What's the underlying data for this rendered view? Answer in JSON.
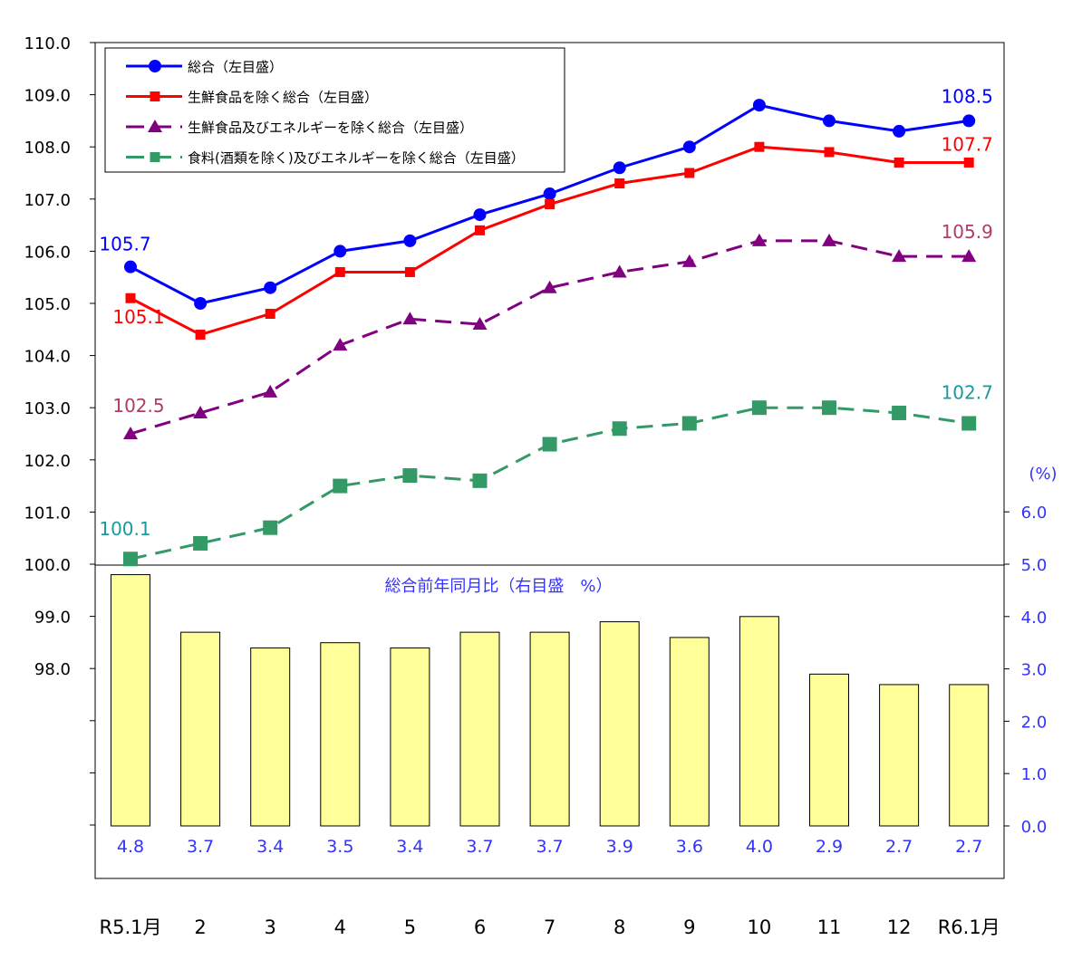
{
  "chart_data": [
    {
      "type": "line",
      "axis": "left",
      "categories": [
        "R5.1月",
        "2",
        "3",
        "4",
        "5",
        "6",
        "7",
        "8",
        "9",
        "10",
        "11",
        "12",
        "R6.1月"
      ],
      "ylim": [
        98.0,
        110.0
      ],
      "yticks": [
        "110.0",
        "109.0",
        "108.0",
        "107.0",
        "106.0",
        "105.0",
        "104.0",
        "103.0",
        "102.0",
        "101.0",
        "100.0",
        "99.0",
        "98.0"
      ],
      "legend_position": "top-left",
      "series": [
        {
          "name": "総合（左目盛）",
          "color": "#0000ff",
          "marker": "circle",
          "dash": false,
          "values": [
            105.7,
            105.0,
            105.3,
            106.0,
            106.2,
            106.7,
            107.1,
            107.6,
            108.0,
            108.8,
            108.5,
            108.3,
            108.5
          ],
          "labels": {
            "first": "105.7",
            "last": "108.5"
          }
        },
        {
          "name": "生鮮食品を除く総合（左目盛）",
          "color": "#ff0000",
          "marker": "square",
          "dash": false,
          "values": [
            105.1,
            104.4,
            104.8,
            105.6,
            105.6,
            106.4,
            106.9,
            107.3,
            107.5,
            108.0,
            107.9,
            107.7,
            107.7
          ],
          "labels": {
            "first": "105.1",
            "last": "107.7"
          }
        },
        {
          "name": "生鮮食品及びエネルギーを除く総合（左目盛）",
          "color": "#800080",
          "label_color": "#b03a6a",
          "marker": "triangle",
          "dash": true,
          "values": [
            102.5,
            102.9,
            103.3,
            104.2,
            104.7,
            104.6,
            105.3,
            105.6,
            105.8,
            106.2,
            106.2,
            105.9,
            105.9
          ],
          "labels": {
            "first": "102.5",
            "last": "105.9"
          }
        },
        {
          "name": "食料(酒類を除く)及びエネルギーを除く総合（左目盛）",
          "color": "#339966",
          "label_color": "#1a9a9a",
          "marker": "square-large",
          "dash": true,
          "values": [
            100.1,
            100.4,
            100.7,
            101.5,
            101.7,
            101.6,
            102.3,
            102.6,
            102.7,
            103.0,
            103.0,
            102.9,
            102.7
          ],
          "labels": {
            "first": "100.1",
            "last": "102.7"
          }
        }
      ]
    },
    {
      "type": "bar",
      "axis": "right",
      "title": "総合前年同月比（右目盛　%）",
      "unit_label": "(%)",
      "categories": [
        "R5.1月",
        "2",
        "3",
        "4",
        "5",
        "6",
        "7",
        "8",
        "9",
        "10",
        "11",
        "12",
        "R6.1月"
      ],
      "values": [
        4.8,
        3.7,
        3.4,
        3.5,
        3.4,
        3.7,
        3.7,
        3.9,
        3.6,
        4.0,
        2.9,
        2.7,
        2.7
      ],
      "value_labels": [
        "4.8",
        "3.7",
        "3.4",
        "3.5",
        "3.4",
        "3.7",
        "3.7",
        "3.9",
        "3.6",
        "4.0",
        "2.9",
        "2.7",
        "2.7"
      ],
      "ylim": [
        0.0,
        6.0
      ],
      "yticks": [
        "0.0",
        "1.0",
        "2.0",
        "3.0",
        "4.0",
        "5.0",
        "6.0"
      ],
      "color": "#ffff99"
    }
  ]
}
